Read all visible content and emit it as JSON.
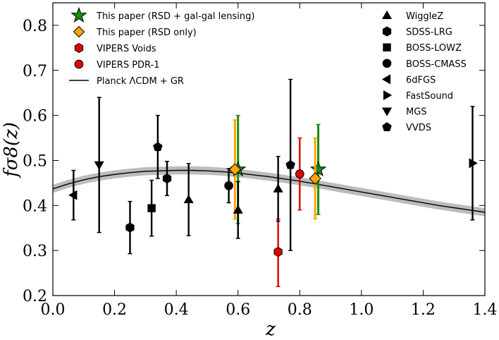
{
  "chart_data": {
    "type": "scatter",
    "xlabel": "z",
    "ylabel": "fσ8(z)",
    "xlim": [
      0.0,
      1.4
    ],
    "ylim": [
      0.2,
      0.85
    ],
    "x_ticks": [
      "0.0",
      "0.2",
      "0.4",
      "0.6",
      "0.8",
      "1.0",
      "1.2",
      "1.4"
    ],
    "y_ticks": [
      "0.2",
      "0.3",
      "0.4",
      "0.5",
      "0.6",
      "0.7",
      "0.8"
    ],
    "grid": false,
    "legend_left": [
      {
        "label": "This paper (RSD + gal-gal lensing)",
        "marker": "star",
        "color": "#1a8a1a"
      },
      {
        "label": "This paper (RSD only)",
        "marker": "diamond",
        "color": "#ffa500"
      },
      {
        "label": "VIPERS Voids",
        "marker": "hexagon",
        "color": "#e00000"
      },
      {
        "label": "VIPERS PDR-1",
        "marker": "circle",
        "color": "#e00000"
      },
      {
        "label": "Planck ΛCDM + GR",
        "marker": "line",
        "color": "#000000"
      }
    ],
    "legend_right": [
      {
        "label": "WiggleZ",
        "marker": "triangle-up"
      },
      {
        "label": "SDSS-LRG",
        "marker": "hexagon"
      },
      {
        "label": "BOSS-LOWZ",
        "marker": "square"
      },
      {
        "label": "BOSS-CMASS",
        "marker": "circle"
      },
      {
        "label": "6dFGS",
        "marker": "triangle-left"
      },
      {
        "label": "FastSound",
        "marker": "triangle-right"
      },
      {
        "label": "MGS",
        "marker": "triangle-down"
      },
      {
        "label": "VVDS",
        "marker": "pentagon"
      }
    ],
    "series": [
      {
        "name": "This paper (RSD + gal-gal lensing)",
        "marker": "star",
        "color": "#1a8a1a",
        "points": [
          {
            "x": 0.6,
            "y": 0.48,
            "lo": 0.36,
            "hi": 0.6
          },
          {
            "x": 0.86,
            "y": 0.48,
            "lo": 0.38,
            "hi": 0.58
          }
        ]
      },
      {
        "name": "This paper (RSD only)",
        "marker": "diamond",
        "color": "#ffa500",
        "points": [
          {
            "x": 0.59,
            "y": 0.48,
            "lo": 0.37,
            "hi": 0.59
          },
          {
            "x": 0.85,
            "y": 0.46,
            "lo": 0.37,
            "hi": 0.55
          }
        ]
      },
      {
        "name": "VIPERS Voids",
        "marker": "hexagon",
        "color": "#e00000",
        "points": [
          {
            "x": 0.73,
            "y": 0.297,
            "lo": 0.22,
            "hi": 0.37
          }
        ]
      },
      {
        "name": "VIPERS PDR-1",
        "marker": "circle",
        "color": "#e00000",
        "points": [
          {
            "x": 0.8,
            "y": 0.47,
            "lo": 0.39,
            "hi": 0.55
          }
        ]
      },
      {
        "name": "WiggleZ",
        "marker": "triangle-up",
        "color": "#000000",
        "points": [
          {
            "x": 0.44,
            "y": 0.413,
            "lo": 0.333,
            "hi": 0.493
          },
          {
            "x": 0.6,
            "y": 0.39,
            "lo": 0.327,
            "hi": 0.453
          },
          {
            "x": 0.73,
            "y": 0.437,
            "lo": 0.365,
            "hi": 0.509
          }
        ]
      },
      {
        "name": "SDSS-LRG",
        "marker": "hexagon",
        "color": "#000000",
        "points": [
          {
            "x": 0.25,
            "y": 0.351,
            "lo": 0.293,
            "hi": 0.409
          },
          {
            "x": 0.37,
            "y": 0.46,
            "lo": 0.422,
            "hi": 0.498
          }
        ]
      },
      {
        "name": "BOSS-LOWZ",
        "marker": "square",
        "color": "#000000",
        "points": [
          {
            "x": 0.32,
            "y": 0.394,
            "lo": 0.332,
            "hi": 0.456
          }
        ]
      },
      {
        "name": "BOSS-CMASS",
        "marker": "circle",
        "color": "#000000",
        "points": [
          {
            "x": 0.57,
            "y": 0.444,
            "lo": 0.406,
            "hi": 0.482
          }
        ]
      },
      {
        "name": "6dFGS",
        "marker": "triangle-left",
        "color": "#000000",
        "points": [
          {
            "x": 0.067,
            "y": 0.423,
            "lo": 0.368,
            "hi": 0.478
          }
        ]
      },
      {
        "name": "FastSound",
        "marker": "triangle-right",
        "color": "#000000",
        "points": [
          {
            "x": 1.36,
            "y": 0.494,
            "lo": 0.368,
            "hi": 0.62
          }
        ]
      },
      {
        "name": "MGS",
        "marker": "triangle-down",
        "color": "#000000",
        "points": [
          {
            "x": 0.15,
            "y": 0.49,
            "lo": 0.34,
            "hi": 0.64
          }
        ]
      },
      {
        "name": "VVDS",
        "marker": "pentagon",
        "color": "#000000",
        "points": [
          {
            "x": 0.34,
            "y": 0.53,
            "lo": 0.46,
            "hi": 0.6
          },
          {
            "x": 0.77,
            "y": 0.49,
            "lo": 0.3,
            "hi": 0.68
          }
        ]
      }
    ],
    "model_curve": {
      "name": "Planck ΛCDM + GR",
      "band_halfwidth": 0.009,
      "x": [
        0.0,
        0.05,
        0.1,
        0.15,
        0.2,
        0.25,
        0.3,
        0.35,
        0.4,
        0.45,
        0.5,
        0.55,
        0.6,
        0.65,
        0.7,
        0.75,
        0.8,
        0.85,
        0.9,
        0.95,
        1.0,
        1.05,
        1.1,
        1.15,
        1.2,
        1.25,
        1.3,
        1.35,
        1.4
      ],
      "y": [
        0.437,
        0.448,
        0.457,
        0.464,
        0.469,
        0.473,
        0.476,
        0.477,
        0.478,
        0.478,
        0.477,
        0.475,
        0.472,
        0.468,
        0.464,
        0.459,
        0.454,
        0.448,
        0.442,
        0.436,
        0.43,
        0.424,
        0.418,
        0.412,
        0.406,
        0.4,
        0.395,
        0.39,
        0.385
      ]
    }
  }
}
